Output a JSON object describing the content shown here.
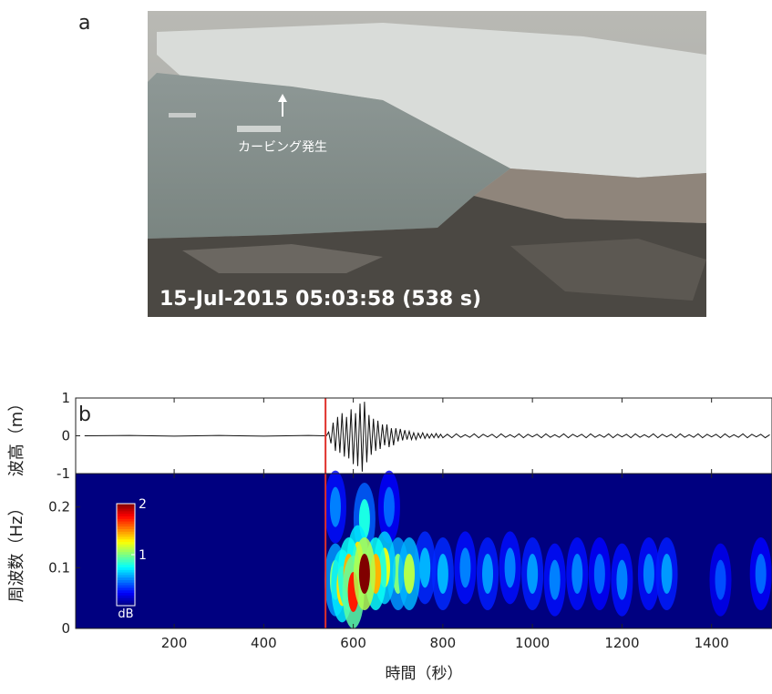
{
  "panel_labels": [
    "a",
    "b"
  ],
  "photo": {
    "arrow_label": "カービング発生",
    "timestamp": "15-Jul-2015 05:03:58 (538 s)"
  },
  "chart_data": [
    {
      "type": "line",
      "ylabel": "波高（m）",
      "ylim": [
        -1,
        1
      ],
      "yticks": [
        -1,
        0,
        1
      ],
      "xlim": [
        -20,
        1535
      ],
      "xticks": [
        200,
        400,
        600,
        800,
        1000,
        1200,
        1400
      ],
      "marker_x": 538,
      "marker_color": "#e0302a",
      "color": "#111111",
      "x": [
        0,
        100,
        200,
        300,
        400,
        500,
        535,
        540,
        545,
        550,
        555,
        560,
        565,
        570,
        575,
        580,
        585,
        590,
        595,
        600,
        605,
        610,
        615,
        620,
        625,
        630,
        635,
        640,
        645,
        650,
        655,
        660,
        665,
        670,
        675,
        680,
        685,
        690,
        695,
        700,
        705,
        710,
        715,
        720,
        725,
        730,
        735,
        740,
        745,
        750,
        755,
        760,
        765,
        770,
        775,
        780,
        785,
        790,
        795,
        800,
        810,
        820,
        830,
        840,
        850,
        860,
        870,
        880,
        890,
        900,
        910,
        920,
        930,
        940,
        950,
        960,
        970,
        980,
        990,
        1000,
        1010,
        1020,
        1030,
        1040,
        1050,
        1060,
        1070,
        1080,
        1090,
        1100,
        1110,
        1120,
        1130,
        1140,
        1150,
        1160,
        1170,
        1180,
        1190,
        1200,
        1210,
        1220,
        1230,
        1240,
        1250,
        1260,
        1270,
        1280,
        1290,
        1300,
        1310,
        1320,
        1330,
        1340,
        1350,
        1360,
        1370,
        1380,
        1390,
        1400,
        1410,
        1420,
        1430,
        1440,
        1450,
        1460,
        1470,
        1480,
        1490,
        1500,
        1510,
        1520,
        1530
      ],
      "values": [
        0,
        0.01,
        -0.01,
        0.01,
        -0.01,
        0.01,
        0,
        0,
        0.1,
        -0.2,
        0.35,
        -0.4,
        0.5,
        -0.45,
        0.6,
        -0.55,
        0.5,
        -0.6,
        0.7,
        -0.75,
        0.6,
        -0.8,
        0.85,
        -0.95,
        0.9,
        -0.7,
        0.55,
        -0.5,
        0.45,
        -0.4,
        0.4,
        -0.35,
        0.3,
        -0.25,
        0.3,
        -0.3,
        0.2,
        -0.25,
        0.2,
        -0.15,
        0.18,
        -0.12,
        0.15,
        -0.1,
        0.12,
        -0.1,
        0.08,
        -0.1,
        0.07,
        -0.06,
        0.08,
        -0.07,
        0.05,
        -0.06,
        0.05,
        -0.05,
        0.06,
        -0.05,
        0.04,
        -0.05,
        0.04,
        -0.05,
        0.05,
        -0.04,
        0.03,
        -0.04,
        0.05,
        -0.05,
        0.04,
        -0.03,
        0.04,
        -0.05,
        0.05,
        -0.04,
        0.03,
        -0.04,
        0.05,
        -0.05,
        0.04,
        -0.03,
        0.04,
        -0.05,
        0.05,
        -0.04,
        0.03,
        -0.04,
        0.05,
        -0.05,
        0.04,
        -0.03,
        0.04,
        -0.05,
        0.05,
        -0.04,
        0.03,
        -0.04,
        0.05,
        -0.05,
        0.04,
        -0.03,
        0.04,
        -0.05,
        0.05,
        -0.04,
        0.03,
        -0.04,
        0.05,
        -0.05,
        0.04,
        -0.03,
        0.04,
        -0.05,
        0.05,
        -0.04,
        0.03,
        -0.04,
        0.05,
        -0.05,
        0.04,
        -0.03,
        0.04,
        -0.05,
        0.05,
        -0.04,
        0.03,
        -0.04,
        0.05,
        -0.05,
        0.04,
        -0.03,
        0.04,
        -0.05,
        0.03
      ]
    },
    {
      "type": "heatmap",
      "xlabel": "時間（秒）",
      "ylabel": "周波数（Hz）",
      "xlim": [
        -20,
        1535
      ],
      "xticks": [
        200,
        400,
        600,
        800,
        1000,
        1200,
        1400
      ],
      "ylim": [
        0,
        0.255
      ],
      "yticks": [
        0,
        0.1,
        0.2
      ],
      "marker_x": 538,
      "marker_color": "#e0302a",
      "colorbar": {
        "lim": [
          0,
          2
        ],
        "ticks": [
          1,
          2
        ],
        "label": "dB"
      },
      "x": [
        560,
        575,
        590,
        600,
        610,
        625,
        625,
        650,
        670,
        700,
        725,
        760,
        800,
        850,
        900,
        950,
        1000,
        1050,
        1100,
        1150,
        1200,
        1260,
        1300,
        1420,
        1510,
        560,
        680
      ],
      "y": [
        0.08,
        0.07,
        0.09,
        0.06,
        0.11,
        0.09,
        0.18,
        0.09,
        0.1,
        0.09,
        0.09,
        0.1,
        0.09,
        0.1,
        0.09,
        0.1,
        0.09,
        0.08,
        0.09,
        0.09,
        0.08,
        0.09,
        0.09,
        0.08,
        0.09,
        0.2,
        0.2
      ],
      "values": [
        1.0,
        1.3,
        1.4,
        1.7,
        1.3,
        2.0,
        0.8,
        1.4,
        1.2,
        1.0,
        1.1,
        0.6,
        0.6,
        0.5,
        0.55,
        0.5,
        0.55,
        0.5,
        0.5,
        0.45,
        0.5,
        0.5,
        0.55,
        0.4,
        0.45,
        0.5,
        0.45
      ]
    }
  ]
}
